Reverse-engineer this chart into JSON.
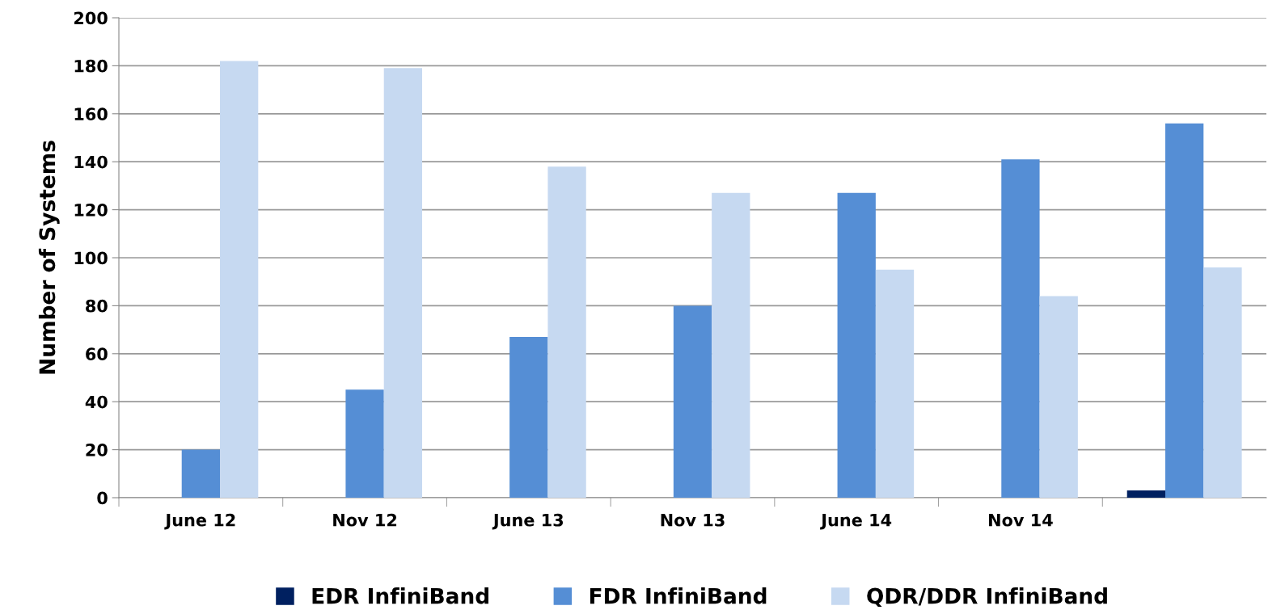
{
  "chart_data": {
    "type": "bar",
    "ylabel": "Number of Systems",
    "categories": [
      "June 12",
      "Nov 12",
      "June 13",
      "Nov 13",
      "June 14",
      "Nov 14",
      null
    ],
    "series": [
      {
        "name": "EDR InfiniBand",
        "color": "#002060",
        "values": [
          0,
          0,
          0,
          0,
          0,
          0,
          3
        ]
      },
      {
        "name": "FDR InfiniBand",
        "color": "#558ed5",
        "values": [
          20,
          45,
          67,
          80,
          127,
          141,
          156
        ]
      },
      {
        "name": "QDR/DDR InfiniBand",
        "color": "#c6d9f1",
        "values": [
          182,
          179,
          138,
          127,
          95,
          84,
          96
        ]
      }
    ],
    "ylim": [
      0,
      200
    ],
    "yticks": [
      0,
      20,
      40,
      60,
      80,
      100,
      120,
      140,
      160,
      180,
      200
    ],
    "grid": "y",
    "legend": "bottom"
  }
}
